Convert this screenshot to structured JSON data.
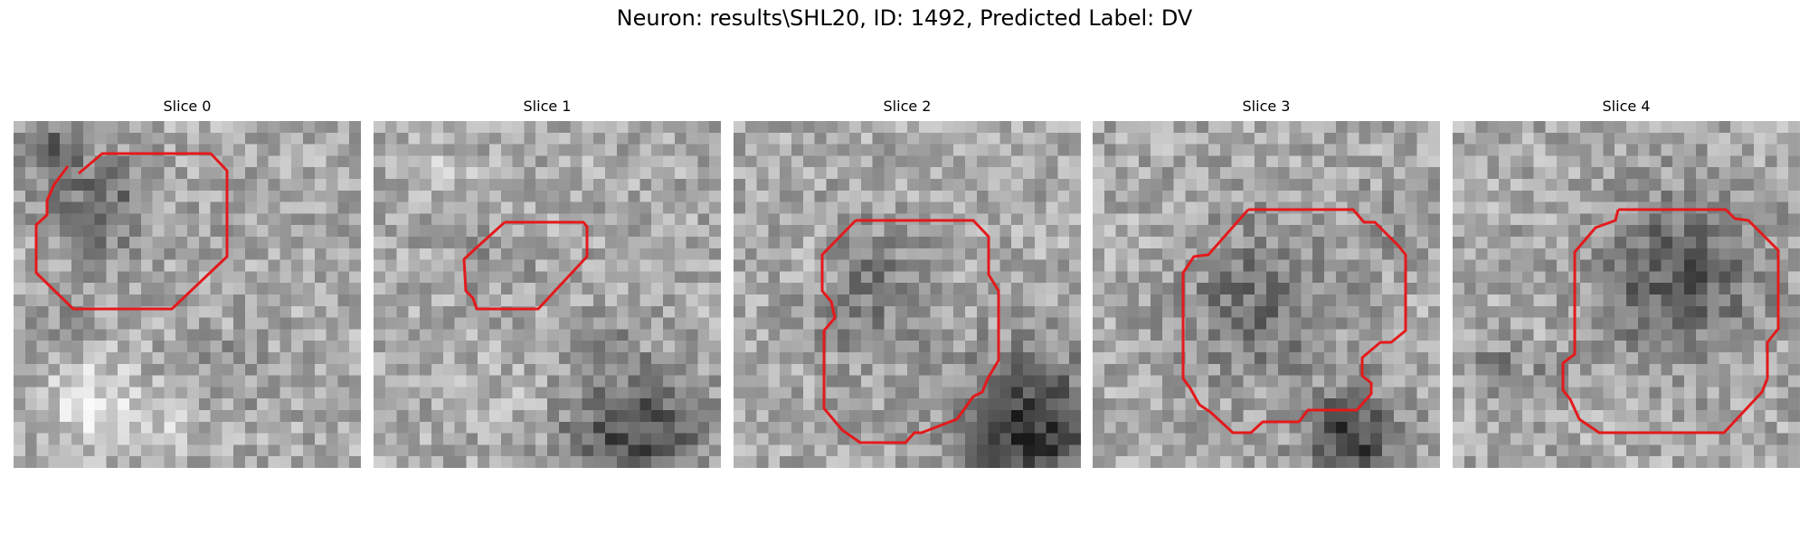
{
  "figure": {
    "title": "Neuron: results\\SHL20, ID: 1492, Predicted Label: DV",
    "outline_color": "#e31a1c",
    "colormap": "grayscale",
    "panels": [
      {
        "title": "Slice 0"
      },
      {
        "title": "Slice 1"
      },
      {
        "title": "Slice 2"
      },
      {
        "title": "Slice 3"
      },
      {
        "title": "Slice 4"
      }
    ]
  }
}
